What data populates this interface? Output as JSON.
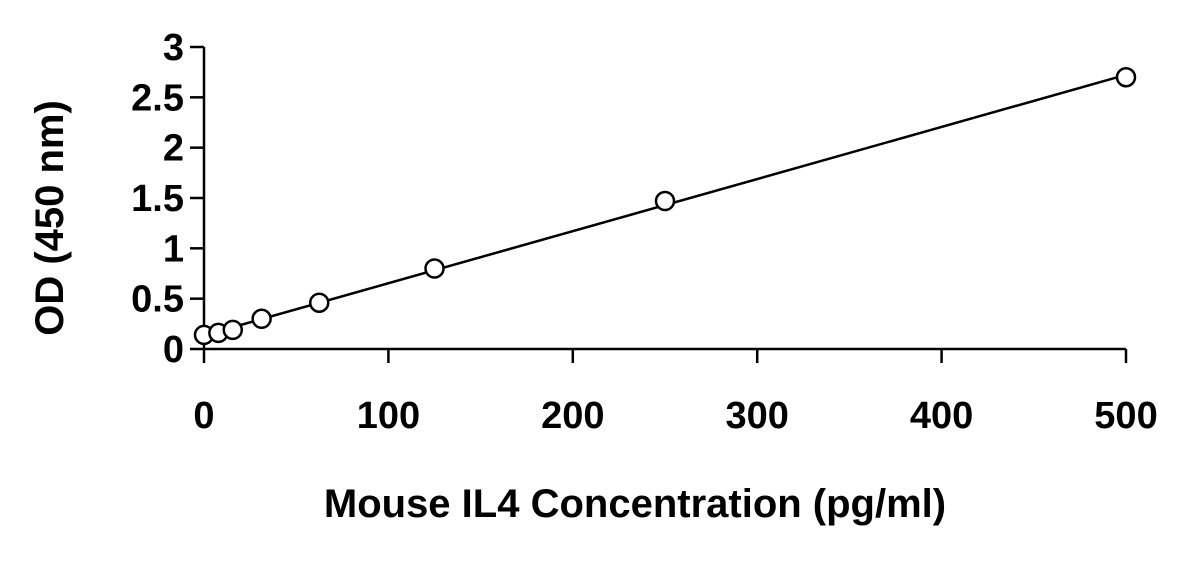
{
  "chart_data": {
    "type": "scatter",
    "title": "",
    "xlabel": "Mouse IL4 Concentration (pg/ml)",
    "ylabel": "OD (450 nm)",
    "xlim": [
      0,
      500
    ],
    "ylim": [
      0,
      3
    ],
    "x_ticks": [
      {
        "value": 0,
        "label": "0"
      },
      {
        "value": 100,
        "label": "100"
      },
      {
        "value": 200,
        "label": "200"
      },
      {
        "value": 300,
        "label": "300"
      },
      {
        "value": 400,
        "label": "400"
      },
      {
        "value": 500,
        "label": "500"
      }
    ],
    "y_ticks": [
      {
        "value": 0,
        "label": "0"
      },
      {
        "value": 0.5,
        "label": "0.5"
      },
      {
        "value": 1,
        "label": "1"
      },
      {
        "value": 1.5,
        "label": "1.5"
      },
      {
        "value": 2,
        "label": "2"
      },
      {
        "value": 2.5,
        "label": "2.5"
      },
      {
        "value": 3,
        "label": "3"
      }
    ],
    "series": [
      {
        "marker": "open-circle",
        "trendline": "linear",
        "color": "#000000",
        "points": [
          {
            "x": 0,
            "y": 0.14
          },
          {
            "x": 7.8,
            "y": 0.16
          },
          {
            "x": 15.6,
            "y": 0.19
          },
          {
            "x": 31.25,
            "y": 0.3
          },
          {
            "x": 62.5,
            "y": 0.46
          },
          {
            "x": 125,
            "y": 0.8
          },
          {
            "x": 250,
            "y": 1.47
          },
          {
            "x": 500,
            "y": 2.7
          }
        ]
      }
    ],
    "grid": false,
    "legend": "none"
  }
}
